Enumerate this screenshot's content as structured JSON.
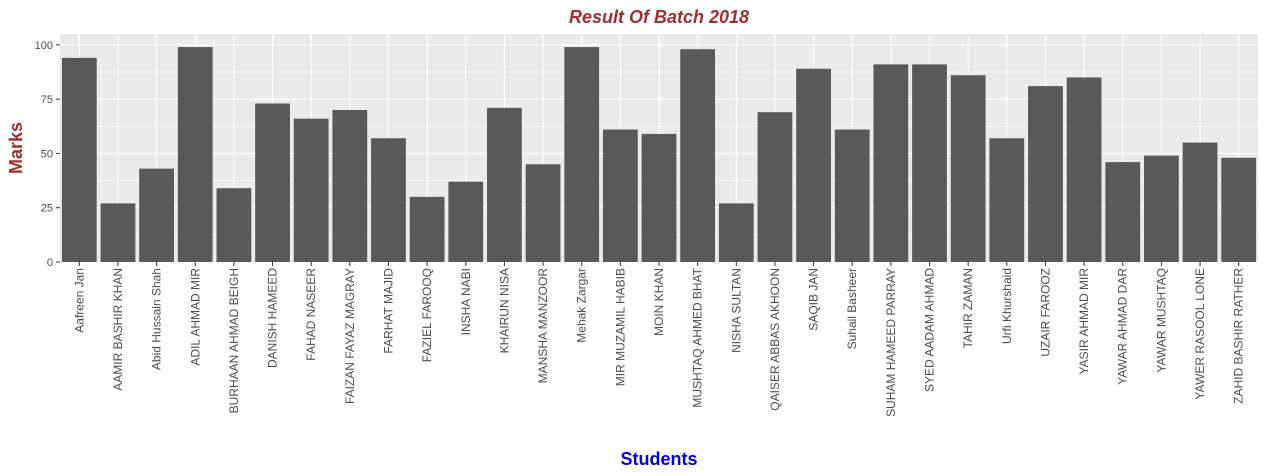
{
  "chart_data": {
    "type": "bar",
    "title": "Result Of Batch 2018",
    "xlabel": "Students",
    "ylabel": "Marks",
    "ylim": [
      0,
      105
    ],
    "yticks": [
      0,
      25,
      50,
      75,
      100
    ],
    "grid": true,
    "categories": [
      "Aafreen Jan",
      "AAMIR BASHIR KHAN",
      "Abid Hussain Shah",
      "ADIL AHMAD MIR",
      "BURHAAN AHMAD BEIGH",
      "DANISH HAMEED",
      "FAHAD NASEER",
      "FAIZAN FAYAZ MAGRAY",
      "FARHAT MAJID",
      "FAZIEL FAROOQ",
      "INSHA NABI",
      "KHAIRUN NISA",
      "MANSHA MANZOOR",
      "Mehak Zargar",
      "MIR MUZAMIL HABIB",
      "MOIN KHAN",
      "MUSHTAQ AHMED BHAT",
      "NISHA SULTAN",
      "QAISER ABBAS AKHOON",
      "SAQIB JAN",
      "Suhail Basheer",
      "SUHAM HAMEED PARRAY",
      "SYED AADAM AHMAD",
      "TAHIR ZAMAN",
      "Urfi Khurshaid",
      "UZAIR FAROOZ",
      "YASIR AHMAD MIR",
      "YAWAR AHMAD DAR",
      "YAWAR MUSHTAQ",
      "YAWER RASOOL LONE",
      "ZAHID BASHIR RATHER"
    ],
    "values": [
      94,
      27,
      43,
      99,
      34,
      73,
      66,
      70,
      57,
      30,
      37,
      71,
      45,
      99,
      61,
      59,
      98,
      27,
      69,
      89,
      61,
      91,
      91,
      86,
      57,
      81,
      85,
      46,
      49,
      55,
      48
    ]
  },
  "colors": {
    "bar": "#595959",
    "panel": "#ebebeb",
    "grid": "#ffffff",
    "title": "#993333",
    "ylabel": "#993333",
    "xlabel": "#0000cc"
  }
}
